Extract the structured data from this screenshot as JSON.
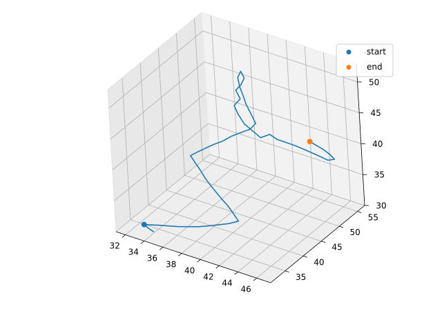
{
  "chart_data": {
    "type": "line",
    "projection": "3d",
    "title": "",
    "xlabel": "",
    "ylabel": "",
    "zlabel": "",
    "xlim": [
      31,
      47.5
    ],
    "ylim": [
      31,
      57
    ],
    "zlim": [
      30,
      53
    ],
    "x_ticks": [
      "32",
      "34",
      "36",
      "38",
      "40",
      "42",
      "44",
      "46"
    ],
    "y_ticks": [
      "35",
      "40",
      "45",
      "50",
      "55"
    ],
    "z_ticks": [
      "30",
      "35",
      "40",
      "45",
      "50"
    ],
    "grid": true,
    "legend": {
      "location": "upper-right",
      "entries": [
        {
          "label": "start",
          "color": "#1f77b4",
          "marker": "circle"
        },
        {
          "label": "end",
          "color": "#ff7f0e",
          "marker": "circle"
        }
      ]
    },
    "series": [
      {
        "type": "line",
        "color": "#1f77b4",
        "description": "random walk trajectory",
        "points": [
          [
            44,
            52,
            41
          ],
          [
            44.6,
            52.3,
            40.5
          ],
          [
            45.2,
            52.6,
            40
          ],
          [
            45.8,
            52.7,
            39.5
          ],
          [
            46.2,
            52.9,
            38.8
          ],
          [
            45.6,
            52.6,
            38.5
          ],
          [
            44.8,
            52.2,
            39
          ],
          [
            43.9,
            51.6,
            39.6
          ],
          [
            43,
            51,
            40.2
          ],
          [
            42.3,
            50.2,
            40.8
          ],
          [
            41.5,
            49.5,
            41.3
          ],
          [
            41,
            48.8,
            42.2
          ],
          [
            40.2,
            48.3,
            41.5
          ],
          [
            39.5,
            48,
            42.4
          ],
          [
            38.9,
            47.4,
            43.5
          ],
          [
            38.2,
            47.6,
            44.6
          ],
          [
            37.6,
            48.1,
            45.5
          ],
          [
            38.1,
            48.6,
            46.6
          ],
          [
            37.5,
            49,
            47.5
          ],
          [
            38,
            49.2,
            48.5
          ],
          [
            38.3,
            49.5,
            49.6
          ],
          [
            37.8,
            49.9,
            50.3
          ],
          [
            37.6,
            49.5,
            49.4
          ],
          [
            37.9,
            49.1,
            48.3
          ],
          [
            38.4,
            48.7,
            47.2
          ],
          [
            38.8,
            48.4,
            46.1
          ],
          [
            39.4,
            48.1,
            45
          ],
          [
            40,
            47.7,
            44
          ],
          [
            39.5,
            47.3,
            43
          ],
          [
            38.7,
            46.8,
            42.3
          ],
          [
            37.9,
            46.2,
            41.6
          ],
          [
            37.2,
            45.5,
            40.8
          ],
          [
            36.5,
            45,
            40.2
          ],
          [
            35.8,
            44.5,
            39.5
          ],
          [
            35.1,
            43.8,
            38.8
          ],
          [
            34.6,
            43.1,
            38.3
          ],
          [
            35.3,
            42.6,
            37.7
          ],
          [
            36,
            42.1,
            37.1
          ],
          [
            36.7,
            41.5,
            36.5
          ],
          [
            37.5,
            40.9,
            36
          ],
          [
            38.3,
            40.3,
            35.6
          ],
          [
            39.1,
            39.7,
            35.2
          ],
          [
            40,
            39.1,
            34.8
          ],
          [
            40.8,
            38.5,
            34.2
          ],
          [
            41.5,
            38,
            33.6
          ],
          [
            40.7,
            37.4,
            33.1
          ],
          [
            39.8,
            36.9,
            32.7
          ],
          [
            38.9,
            36.4,
            32.3
          ],
          [
            38,
            35.8,
            32
          ],
          [
            37.1,
            35.3,
            31.8
          ],
          [
            36.2,
            34.8,
            31.6
          ],
          [
            35.4,
            34.4,
            31.5
          ],
          [
            34.6,
            34,
            31.4
          ],
          [
            33.9,
            33.6,
            31.3
          ],
          [
            33.2,
            33.2,
            31.2
          ],
          [
            33.8,
            32.8,
            31.1
          ],
          [
            34.5,
            32.5,
            31
          ]
        ]
      },
      {
        "type": "scatter",
        "name": "start",
        "color": "#1f77b4",
        "points": [
          [
            33.2,
            33.2,
            31.2
          ]
        ]
      },
      {
        "type": "scatter",
        "name": "end",
        "color": "#ff7f0e",
        "points": [
          [
            44,
            52,
            41
          ]
        ]
      }
    ]
  }
}
